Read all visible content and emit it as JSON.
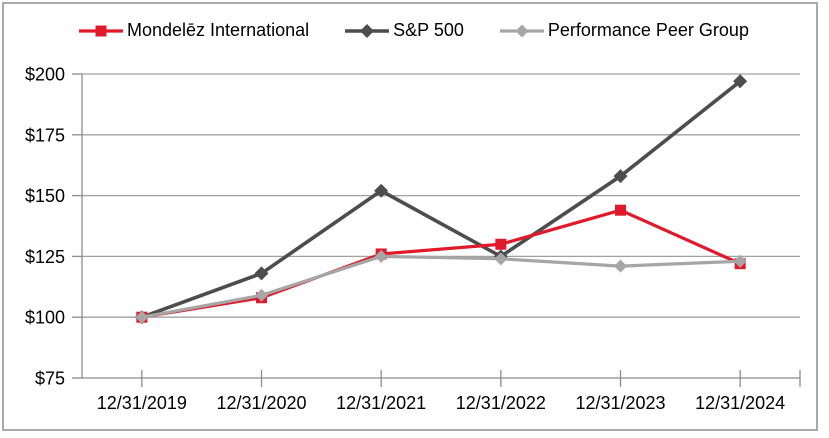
{
  "chart_data": {
    "type": "line",
    "title": "",
    "categories": [
      "12/31/2019",
      "12/31/2020",
      "12/31/2021",
      "12/31/2022",
      "12/31/2023",
      "12/31/2024"
    ],
    "series": [
      {
        "id": "sp500",
        "name": "S&P 500",
        "color": "#4d4d4d",
        "marker": "diamond",
        "line_width": 3.6,
        "marker_size": 14,
        "values": [
          100,
          118,
          152,
          125,
          158,
          197
        ]
      },
      {
        "id": "mondelez",
        "name": "Mondelēz International",
        "color": "#e01a2b",
        "marker": "square",
        "line_width": 3.2,
        "marker_size": 11,
        "values": [
          100,
          108,
          126,
          130,
          144,
          122
        ]
      },
      {
        "id": "peer-group",
        "name": "Performance Peer Group",
        "color": "#a6a6a6",
        "marker": "diamond",
        "line_width": 3.2,
        "marker_size": 13,
        "values": [
          100,
          109,
          125,
          124,
          121,
          123
        ]
      }
    ],
    "legend_order": [
      "mondelez",
      "sp500",
      "peer-group"
    ],
    "xlabel": "",
    "ylabel": "",
    "ylim": [
      75,
      200
    ],
    "yticks": [
      75,
      100,
      125,
      150,
      175,
      200
    ],
    "ytick_labels": [
      "$75",
      "$100",
      "$125",
      "$150",
      "$175",
      "$200"
    ],
    "grid": true,
    "legend_position": "top",
    "colors": {
      "grid": "#a0a0a0",
      "axis": "#8c8c8c",
      "text": "#000000",
      "frame_border": "#a9a9a9",
      "background": "#ffffff"
    }
  }
}
